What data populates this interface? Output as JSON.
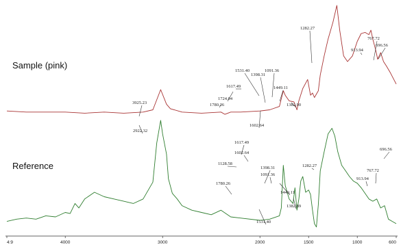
{
  "chart_data": {
    "type": "line",
    "title": "",
    "xlabel": "",
    "ylabel": "",
    "xlim": [
      4600,
      600
    ],
    "x_reversed": true,
    "grid": false,
    "x_ticks": [
      "4:9",
      "4000",
      "3000",
      "2000",
      "1500",
      "1000",
      "600"
    ],
    "x_tick_values": [
      4600,
      4000,
      3000,
      2000,
      1500,
      1000,
      600
    ],
    "series": [
      {
        "name": "Sample (pink)",
        "color": "#a83232",
        "points": [
          [
            4600,
            0.06
          ],
          [
            4400,
            0.05
          ],
          [
            4200,
            0.05
          ],
          [
            4000,
            0.05
          ],
          [
            3800,
            0.04
          ],
          [
            3600,
            0.05
          ],
          [
            3400,
            0.04
          ],
          [
            3200,
            0.05
          ],
          [
            3100,
            0.07
          ],
          [
            3020,
            0.25
          ],
          [
            2960,
            0.12
          ],
          [
            2920,
            0.08
          ],
          [
            2800,
            0.05
          ],
          [
            2600,
            0.04
          ],
          [
            2400,
            0.05
          ],
          [
            2360,
            0.03
          ],
          [
            2300,
            0.05
          ],
          [
            2200,
            0.05
          ],
          [
            2000,
            0.06
          ],
          [
            1900,
            0.07
          ],
          [
            1800,
            0.1
          ],
          [
            1760,
            0.24
          ],
          [
            1740,
            0.2
          ],
          [
            1700,
            0.15
          ],
          [
            1650,
            0.14
          ],
          [
            1620,
            0.07
          ],
          [
            1600,
            0.15
          ],
          [
            1560,
            0.26
          ],
          [
            1510,
            0.34
          ],
          [
            1480,
            0.2
          ],
          [
            1460,
            0.22
          ],
          [
            1440,
            0.18
          ],
          [
            1400,
            0.24
          ],
          [
            1380,
            0.38
          ],
          [
            1340,
            0.55
          ],
          [
            1300,
            0.7
          ],
          [
            1250,
            0.85
          ],
          [
            1210,
            1.0
          ],
          [
            1180,
            0.78
          ],
          [
            1140,
            0.55
          ],
          [
            1100,
            0.5
          ],
          [
            1050,
            0.55
          ],
          [
            1000,
            0.68
          ],
          [
            960,
            0.75
          ],
          [
            920,
            0.76
          ],
          [
            880,
            0.74
          ],
          [
            860,
            0.78
          ],
          [
            840,
            0.7
          ],
          [
            810,
            0.6
          ],
          [
            790,
            0.52
          ],
          [
            760,
            0.58
          ],
          [
            730,
            0.5
          ],
          [
            700,
            0.46
          ],
          [
            660,
            0.4
          ],
          [
            600,
            0.3
          ]
        ],
        "peaks": [
          "3925.23",
          "1780.26",
          "1724.04",
          "1617.49",
          "1531.40",
          "1398.31",
          "1091.36",
          "1449.11",
          "1382.90",
          "1602.64",
          "1282.27",
          "913.94",
          "767.72",
          "696.56"
        ]
      },
      {
        "name": "Reference",
        "color": "#2e7d2e",
        "points": [
          [
            4600,
            0.1
          ],
          [
            4500,
            0.12
          ],
          [
            4400,
            0.13
          ],
          [
            4300,
            0.12
          ],
          [
            4200,
            0.15
          ],
          [
            4100,
            0.14
          ],
          [
            4000,
            0.18
          ],
          [
            3950,
            0.17
          ],
          [
            3900,
            0.26
          ],
          [
            3860,
            0.22
          ],
          [
            3800,
            0.3
          ],
          [
            3700,
            0.36
          ],
          [
            3600,
            0.32
          ],
          [
            3500,
            0.3
          ],
          [
            3400,
            0.28
          ],
          [
            3300,
            0.26
          ],
          [
            3200,
            0.3
          ],
          [
            3100,
            0.45
          ],
          [
            3060,
            0.8
          ],
          [
            3020,
            1.0
          ],
          [
            3000,
            0.88
          ],
          [
            2960,
            0.7
          ],
          [
            2940,
            0.48
          ],
          [
            2900,
            0.35
          ],
          [
            2850,
            0.3
          ],
          [
            2800,
            0.24
          ],
          [
            2700,
            0.2
          ],
          [
            2600,
            0.18
          ],
          [
            2500,
            0.16
          ],
          [
            2400,
            0.2
          ],
          [
            2300,
            0.14
          ],
          [
            2200,
            0.13
          ],
          [
            2000,
            0.11
          ],
          [
            1900,
            0.12
          ],
          [
            1800,
            0.15
          ],
          [
            1780,
            0.22
          ],
          [
            1760,
            0.6
          ],
          [
            1740,
            0.42
          ],
          [
            1700,
            0.3
          ],
          [
            1660,
            0.26
          ],
          [
            1640,
            0.4
          ],
          [
            1620,
            0.2
          ],
          [
            1600,
            0.3
          ],
          [
            1580,
            0.46
          ],
          [
            1560,
            0.5
          ],
          [
            1530,
            0.36
          ],
          [
            1500,
            0.38
          ],
          [
            1480,
            0.34
          ],
          [
            1460,
            0.2
          ],
          [
            1440,
            0.08
          ],
          [
            1420,
            0.05
          ],
          [
            1400,
            0.25
          ],
          [
            1380,
            0.55
          ],
          [
            1340,
            0.72
          ],
          [
            1300,
            0.88
          ],
          [
            1260,
            0.93
          ],
          [
            1230,
            0.86
          ],
          [
            1200,
            0.72
          ],
          [
            1160,
            0.6
          ],
          [
            1120,
            0.55
          ],
          [
            1080,
            0.5
          ],
          [
            1040,
            0.46
          ],
          [
            1000,
            0.44
          ],
          [
            960,
            0.4
          ],
          [
            920,
            0.35
          ],
          [
            880,
            0.3
          ],
          [
            840,
            0.28
          ],
          [
            800,
            0.3
          ],
          [
            760,
            0.22
          ],
          [
            720,
            0.24
          ],
          [
            680,
            0.12
          ],
          [
            640,
            0.1
          ],
          [
            600,
            0.08
          ]
        ],
        "peaks": [
          "2922.32",
          "1617.49",
          "1602.64",
          "1398.31",
          "1091.36",
          "1128.58",
          "1449.11",
          "1780.26",
          "1382.89",
          "1531.40",
          "1282.27",
          "913.94",
          "767.72",
          "696.56"
        ]
      }
    ]
  }
}
